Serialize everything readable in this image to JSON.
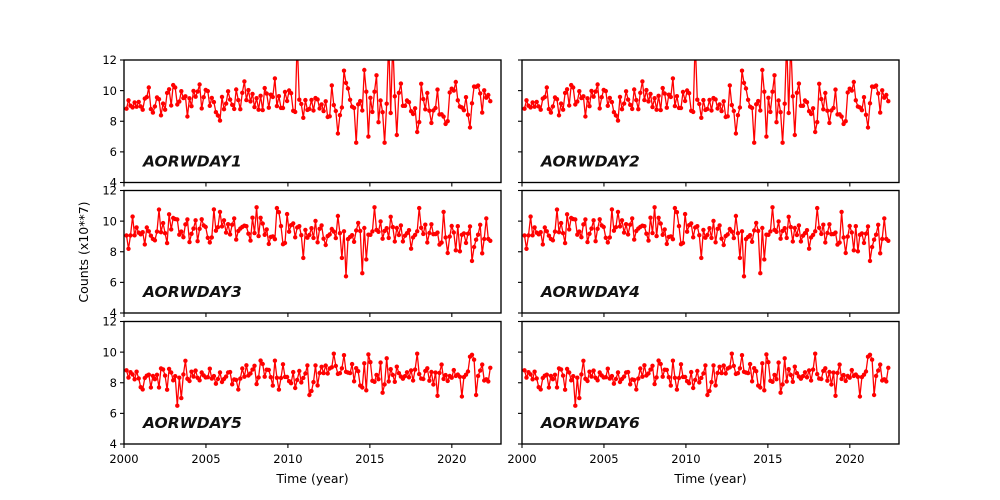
{
  "figure": {
    "background": "#ffffff",
    "axes_color": "#000000"
  },
  "chart_data": {
    "type": "line",
    "title": "",
    "layout": "3 rows x 2 columns, shared x and y axes, small gaps, box spines on all sides, outward ticks bottom/left",
    "xlabel": "Time (year)",
    "ylabel": "Counts (x10**7)",
    "xlim": [
      2000,
      2023
    ],
    "ylim": [
      4,
      12
    ],
    "x_ticks": [
      2000,
      2005,
      2010,
      2015,
      2020
    ],
    "y_ticks": [
      12,
      10,
      8,
      6,
      4
    ],
    "grid": false,
    "legend": "none",
    "line_color": "#ff0000",
    "marker": "filled-circle",
    "panels": [
      {
        "label": "AORWDAY1",
        "row": 0,
        "col": 0,
        "series": "row1"
      },
      {
        "label": "AORWDAY2",
        "row": 0,
        "col": 1,
        "series": "row1"
      },
      {
        "label": "AORWDAY3",
        "row": 1,
        "col": 0,
        "series": "row2"
      },
      {
        "label": "AORWDAY4",
        "row": 1,
        "col": 1,
        "series": "row2"
      },
      {
        "label": "AORWDAY5",
        "row": 2,
        "col": 0,
        "series": "row3"
      },
      {
        "label": "AORWDAY6",
        "row": 2,
        "col": 1,
        "series": "row3"
      }
    ],
    "series_params": {
      "row1": {
        "seed": 7,
        "n": 180,
        "x_start": 2000.15,
        "x_end": 2022.35,
        "mean": 9.25,
        "std": 0.48,
        "slope": -0.01,
        "extra_std_after": 2012.5,
        "extra_std": 0.24,
        "events": [
          [
            2004.6,
            10.4
          ],
          [
            2007.3,
            10.6
          ],
          [
            2009.2,
            10.8
          ],
          [
            2010.55,
            13.3
          ],
          [
            2013.0,
            7.2
          ],
          [
            2013.45,
            11.3
          ],
          [
            2014.2,
            6.6
          ],
          [
            2014.6,
            11.35
          ],
          [
            2014.85,
            7.0
          ],
          [
            2015.45,
            11.0
          ],
          [
            2015.95,
            6.6
          ],
          [
            2016.1,
            13.3
          ],
          [
            2016.35,
            13.2
          ],
          [
            2016.6,
            7.1
          ],
          [
            2017.85,
            7.3
          ]
        ]
      },
      "row2": {
        "seed": 13,
        "n": 180,
        "x_start": 2000.15,
        "x_end": 2022.35,
        "mean": 9.55,
        "std": 0.48,
        "slope": -0.022,
        "extra_std_after": null,
        "extra_std": 0,
        "events": [
          [
            2002.1,
            10.75
          ],
          [
            2005.9,
            10.6
          ],
          [
            2008.1,
            10.9
          ],
          [
            2009.3,
            10.85
          ],
          [
            2010.9,
            7.6
          ],
          [
            2013.35,
            7.6
          ],
          [
            2013.6,
            6.4
          ],
          [
            2014.55,
            6.6
          ],
          [
            2014.8,
            7.5
          ],
          [
            2015.3,
            10.9
          ],
          [
            2018.0,
            10.85
          ],
          [
            2019.5,
            10.6
          ],
          [
            2021.2,
            7.4
          ],
          [
            2021.9,
            7.9
          ]
        ]
      },
      "row3": {
        "seed": 42,
        "n": 180,
        "x_start": 2000.15,
        "x_end": 2022.35,
        "mean": 8.45,
        "std": 0.45,
        "slope": 0.004,
        "extra_std_after": null,
        "extra_std": 0,
        "events": [
          [
            2003.3,
            6.5
          ],
          [
            2003.55,
            7.0
          ],
          [
            2011.3,
            7.2
          ],
          [
            2012.85,
            9.9
          ],
          [
            2013.4,
            9.8
          ],
          [
            2014.9,
            9.85
          ],
          [
            2016.0,
            9.6
          ],
          [
            2017.9,
            9.9
          ],
          [
            2019.15,
            7.15
          ],
          [
            2020.6,
            7.1
          ],
          [
            2021.1,
            9.7
          ],
          [
            2021.5,
            7.2
          ]
        ]
      }
    }
  }
}
